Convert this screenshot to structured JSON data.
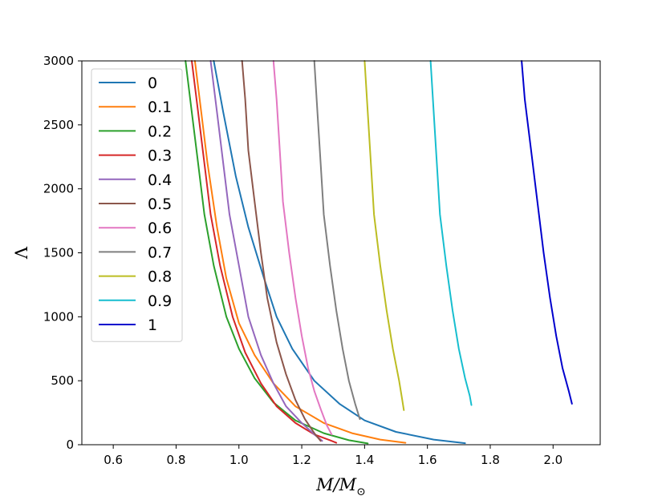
{
  "chart_data": {
    "type": "line",
    "title": "",
    "xlabel": "M/M_⊙",
    "xlabel_main": "M/M",
    "xlabel_sub": "⊙",
    "ylabel": "Λ",
    "xlim": [
      0.5,
      2.15
    ],
    "ylim": [
      0,
      3000
    ],
    "xticks": [
      0.6,
      0.8,
      1.0,
      1.2,
      1.4,
      1.6,
      1.8,
      2.0
    ],
    "xtick_labels": [
      "0.6",
      "0.8",
      "1.0",
      "1.2",
      "1.4",
      "1.6",
      "1.8",
      "2.0"
    ],
    "yticks": [
      0,
      500,
      1000,
      1500,
      2000,
      2500,
      3000
    ],
    "ytick_labels": [
      "0",
      "500",
      "1000",
      "1500",
      "2000",
      "2500",
      "3000"
    ],
    "grid": false,
    "legend_position": "top-left",
    "series": [
      {
        "name": "0",
        "color": "#1f77b4",
        "x": [
          0.92,
          0.95,
          0.99,
          1.03,
          1.08,
          1.12,
          1.17,
          1.24,
          1.32,
          1.4,
          1.5,
          1.62,
          1.72
        ],
        "y": [
          3000,
          2600,
          2100,
          1700,
          1300,
          1000,
          750,
          500,
          320,
          190,
          100,
          40,
          12
        ]
      },
      {
        "name": "0.1",
        "color": "#ff7f0e",
        "x": [
          0.86,
          0.88,
          0.9,
          0.93,
          0.96,
          1.0,
          1.05,
          1.11,
          1.18,
          1.27,
          1.36,
          1.45,
          1.53
        ],
        "y": [
          3000,
          2600,
          2200,
          1700,
          1300,
          950,
          700,
          480,
          300,
          170,
          90,
          40,
          15
        ]
      },
      {
        "name": "0.2",
        "color": "#2ca02c",
        "x": [
          0.83,
          0.85,
          0.87,
          0.89,
          0.92,
          0.96,
          1.0,
          1.05,
          1.11,
          1.18,
          1.27,
          1.35,
          1.41
        ],
        "y": [
          3000,
          2600,
          2200,
          1800,
          1400,
          1000,
          750,
          520,
          330,
          190,
          90,
          35,
          10
        ]
      },
      {
        "name": "0.3",
        "color": "#d62728",
        "x": [
          0.85,
          0.87,
          0.89,
          0.91,
          0.94,
          0.98,
          1.02,
          1.07,
          1.12,
          1.18,
          1.24,
          1.29,
          1.31
        ],
        "y": [
          3000,
          2600,
          2200,
          1800,
          1400,
          1000,
          720,
          480,
          300,
          170,
          80,
          35,
          15
        ]
      },
      {
        "name": "0.4",
        "color": "#9467bd",
        "x": [
          0.91,
          0.93,
          0.95,
          0.97,
          1.0,
          1.03,
          1.07,
          1.11,
          1.15,
          1.2,
          1.24,
          1.265
        ],
        "y": [
          3000,
          2600,
          2200,
          1800,
          1400,
          1000,
          700,
          480,
          300,
          170,
          80,
          30
        ]
      },
      {
        "name": "0.5",
        "color": "#8c564b",
        "x": [
          1.01,
          1.02,
          1.03,
          1.05,
          1.07,
          1.09,
          1.12,
          1.15,
          1.18,
          1.21,
          1.24,
          1.26
        ],
        "y": [
          3000,
          2700,
          2300,
          1900,
          1500,
          1150,
          800,
          550,
          350,
          200,
          90,
          30
        ]
      },
      {
        "name": "0.6",
        "color": "#e377c2",
        "x": [
          1.11,
          1.12,
          1.13,
          1.14,
          1.16,
          1.18,
          1.2,
          1.22,
          1.24,
          1.26,
          1.28,
          1.295
        ],
        "y": [
          3000,
          2700,
          2300,
          1900,
          1500,
          1150,
          850,
          600,
          420,
          280,
          150,
          80
        ]
      },
      {
        "name": "0.7",
        "color": "#7f7f7f",
        "x": [
          1.24,
          1.25,
          1.26,
          1.27,
          1.29,
          1.31,
          1.33,
          1.35,
          1.37,
          1.385
        ],
        "y": [
          3000,
          2600,
          2200,
          1800,
          1400,
          1050,
          750,
          500,
          320,
          200
        ]
      },
      {
        "name": "0.8",
        "color": "#bcbd22",
        "x": [
          1.4,
          1.41,
          1.42,
          1.43,
          1.45,
          1.47,
          1.49,
          1.51,
          1.52,
          1.525
        ],
        "y": [
          3000,
          2600,
          2200,
          1800,
          1400,
          1050,
          750,
          500,
          350,
          270
        ]
      },
      {
        "name": "0.9",
        "color": "#17becf",
        "x": [
          1.61,
          1.62,
          1.63,
          1.64,
          1.66,
          1.68,
          1.7,
          1.72,
          1.735,
          1.74
        ],
        "y": [
          3000,
          2600,
          2200,
          1800,
          1400,
          1050,
          750,
          520,
          380,
          310
        ]
      },
      {
        "name": "1",
        "color": "#0000cd",
        "x": [
          1.9,
          1.91,
          1.93,
          1.95,
          1.97,
          1.99,
          2.01,
          2.03,
          2.05,
          2.06
        ],
        "y": [
          3000,
          2700,
          2300,
          1900,
          1500,
          1150,
          850,
          600,
          420,
          320
        ]
      }
    ]
  }
}
